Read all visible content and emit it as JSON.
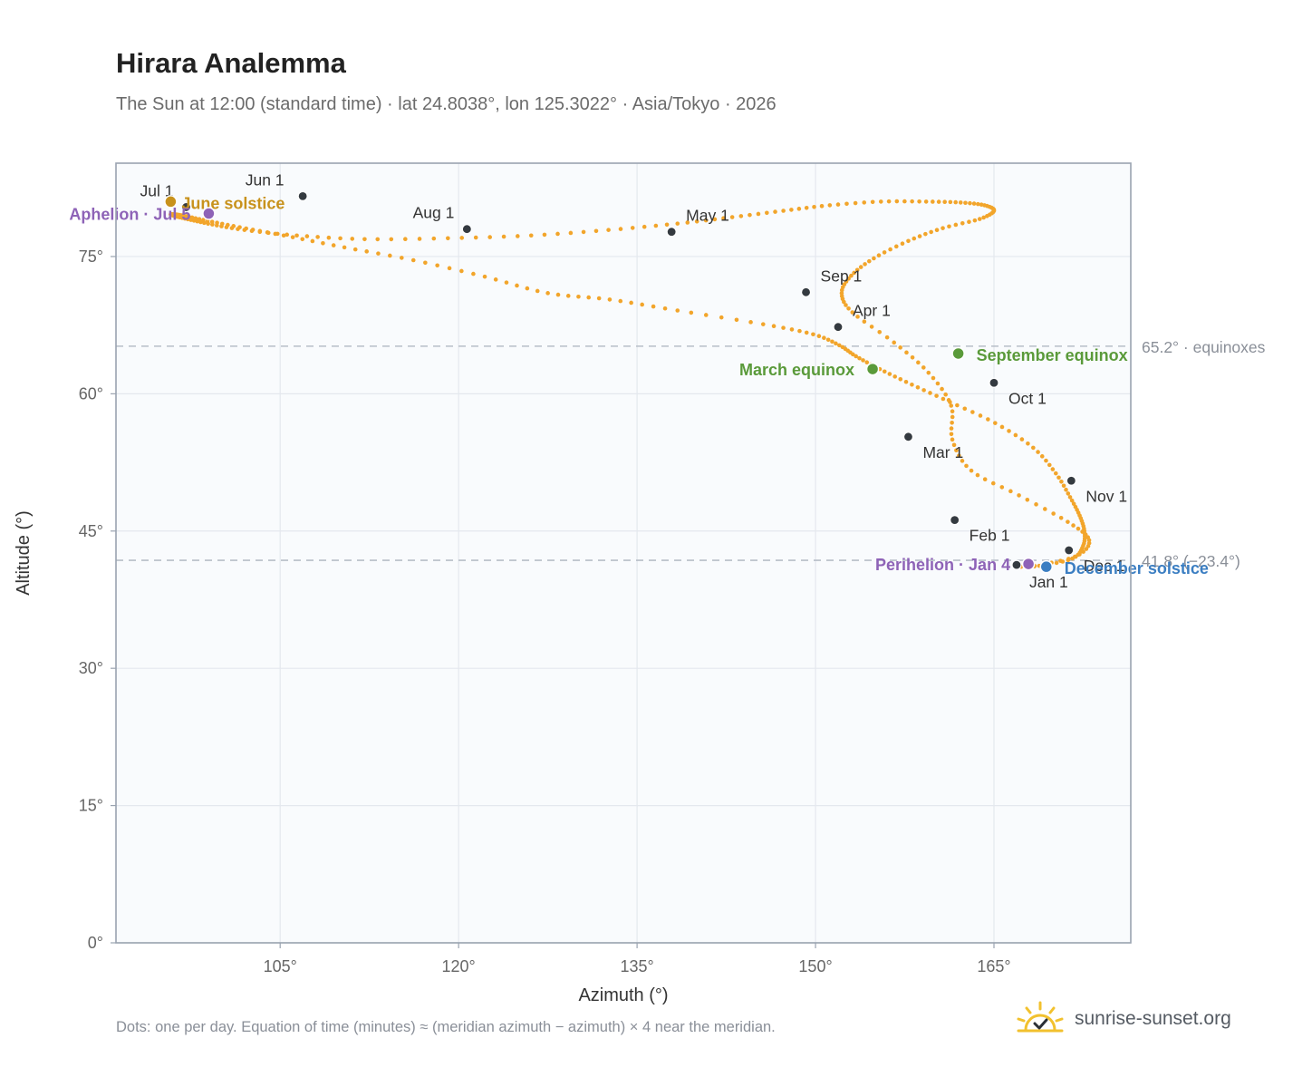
{
  "title": "Hirara Analemma",
  "subtitle": "The Sun at 12:00 (standard time) · lat 24.8038°, lon 125.3022° · Asia/Tokyo · 2026",
  "footnote": "Dots: one per day. Equation of time (minutes) ≈ (meridian azimuth − azimuth) × 4 near the meridian.",
  "brand": {
    "name": "sunrise-sunset.org",
    "icon": "sun-check-icon"
  },
  "colors": {
    "path": "#f2a52b",
    "month_dot": "#343a40",
    "june_solstice": "#c8921c",
    "december_solstice": "#3b7ec2",
    "equinox": "#5a9a3a",
    "apsis": "#8e63b7",
    "plot_bg": "#f9fbfd",
    "grid": "#e4e8ee",
    "frame": "#9aa3b0",
    "ref_line": "#b7bec8"
  },
  "chart_data": {
    "type": "scatter",
    "xlabel": "Azimuth (°)",
    "ylabel": "Altitude (°)",
    "xlim": [
      91.2,
      176.5
    ],
    "ylim": [
      0,
      85.2
    ],
    "xticks": [
      105,
      120,
      135,
      150,
      165
    ],
    "xtick_labels": [
      "105°",
      "120°",
      "135°",
      "150°",
      "165°"
    ],
    "yticks": [
      0,
      15,
      30,
      45,
      60,
      75
    ],
    "ytick_labels": [
      "0°",
      "15°",
      "30°",
      "45°",
      "60°",
      "75°"
    ],
    "grid": true,
    "series": [
      {
        "x": [
          167.9,
          171.8,
          173.0,
          171.2,
          167.1,
          163.1,
          161.5,
          161.4,
          159.5,
          156.6,
          153.1,
          152.2,
          153.0,
          154.9,
          157.8,
          160.7,
          163.8,
          165.0,
          164.2,
          162.2,
          159.3,
          155.5,
          151.2,
          147.3,
          143.0,
          138.4,
          132.6,
          126.1,
          119.1,
          112.1,
          106.4,
          102.0,
          99.3,
          97.5,
          96.2,
          95.8,
          96.2,
          97.1,
          98.9,
          101.6,
          105.3,
          110.4,
          116.2,
          122.2,
          127.5,
          132.7,
          138.4,
          145.6,
          149.8,
          152.0,
          153.4,
          155.4,
          158.1,
          161.3,
          165.1,
          168.3,
          170.2,
          171.4,
          172.2,
          172.6,
          172.5,
          171.6,
          168.8,
          166.9
        ],
        "y": [
          41.1,
          42.2,
          44.0,
          46.0,
          48.9,
          51.6,
          55.0,
          58.7,
          62.3,
          65.6,
          68.9,
          71.0,
          72.9,
          74.8,
          76.7,
          78.1,
          79.1,
          80.0,
          80.6,
          80.9,
          81.0,
          81.0,
          80.6,
          80.0,
          79.3,
          78.6,
          77.9,
          77.3,
          77.0,
          76.9,
          77.3,
          77.9,
          78.5,
          79.0,
          79.4,
          79.6,
          79.6,
          79.4,
          78.9,
          78.2,
          77.3,
          76.0,
          74.6,
          72.8,
          71.0,
          70.3,
          69.1,
          67.6,
          66.5,
          65.3,
          64.1,
          62.7,
          61.0,
          59.1,
          56.8,
          54.1,
          51.3,
          48.7,
          46.7,
          45.0,
          43.4,
          42.0,
          41.2,
          41.1
        ]
      }
    ],
    "month_markers": [
      {
        "label": "Jan 1",
        "x": 166.9,
        "y": 41.3
      },
      {
        "label": "Feb 1",
        "x": 161.7,
        "y": 46.2
      },
      {
        "label": "Mar 1",
        "x": 157.8,
        "y": 55.3
      },
      {
        "label": "Apr 1",
        "x": 151.9,
        "y": 67.3
      },
      {
        "label": "May 1",
        "x": 137.9,
        "y": 77.7
      },
      {
        "label": "Jun 1",
        "x": 106.9,
        "y": 81.6
      },
      {
        "label": "Jul 1",
        "x": 97.1,
        "y": 80.4
      },
      {
        "label": "Aug 1",
        "x": 120.7,
        "y": 78.0
      },
      {
        "label": "Sep 1",
        "x": 149.2,
        "y": 71.1
      },
      {
        "label": "Oct 1",
        "x": 165.0,
        "y": 61.2
      },
      {
        "label": "Nov 1",
        "x": 171.5,
        "y": 50.5
      },
      {
        "label": "Dec 1",
        "x": 171.3,
        "y": 42.9
      }
    ],
    "events": [
      {
        "label": "June solstice",
        "x": 95.8,
        "y": 81.0,
        "color": "#c8921c"
      },
      {
        "label": "December solstice",
        "x": 169.4,
        "y": 41.1,
        "color": "#3b7ec2"
      },
      {
        "label": "March equinox",
        "x": 154.8,
        "y": 62.7,
        "color": "#5a9a3a"
      },
      {
        "label": "September equinox",
        "x": 162.0,
        "y": 64.4,
        "color": "#5a9a3a"
      },
      {
        "label": "Aphelion · Jul 5",
        "x": 99.0,
        "y": 79.7,
        "color": "#8e63b7"
      },
      {
        "label": "Perihelion · Jan 4",
        "x": 167.9,
        "y": 41.4,
        "color": "#8e63b7"
      }
    ],
    "reference_lines": [
      {
        "y": 65.2,
        "label": "65.2° · equinoxes"
      },
      {
        "y": 41.8,
        "label": "41.8° (−23.4°)"
      }
    ]
  }
}
